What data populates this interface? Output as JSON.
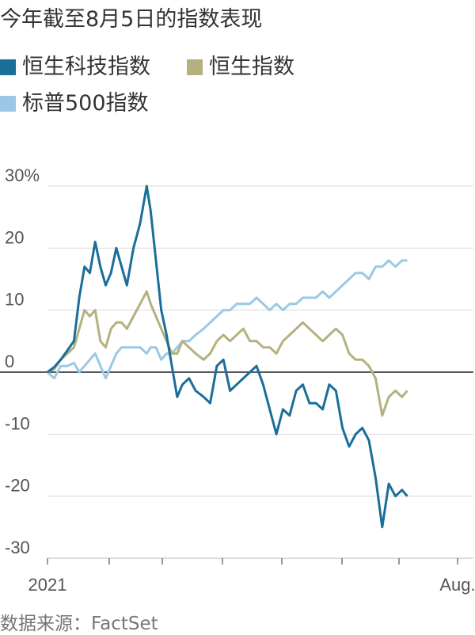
{
  "title": "今年截至8月5日的指数表现",
  "source": "数据来源：FactSet",
  "chart_data": {
    "type": "line",
    "title": "今年截至8月5日的指数表现",
    "ylim": [
      -30,
      30
    ],
    "yticks": [
      30,
      20,
      10,
      0,
      -10,
      -20,
      -30
    ],
    "ytick_labels": [
      "30%",
      "20",
      "10",
      "0",
      "-10",
      "-20",
      "-30"
    ],
    "xlim": [
      0,
      31
    ],
    "xtick_labels": [
      {
        "x": 0,
        "label": "2021"
      },
      {
        "x": 31,
        "label": "Aug."
      }
    ],
    "grid": true,
    "legend_position": "top-left",
    "series": [
      {
        "name": "恒生科技指数",
        "color": "#1a6e99",
        "values": [
          [
            0,
            0
          ],
          [
            0.5,
            0.8
          ],
          [
            1,
            2
          ],
          [
            1.5,
            3.5
          ],
          [
            2,
            5
          ],
          [
            2.4,
            12
          ],
          [
            2.8,
            17
          ],
          [
            3.2,
            16
          ],
          [
            3.6,
            21
          ],
          [
            4,
            17
          ],
          [
            4.4,
            14
          ],
          [
            4.8,
            16
          ],
          [
            5.2,
            20
          ],
          [
            5.6,
            17
          ],
          [
            6,
            14
          ],
          [
            6.5,
            20
          ],
          [
            7,
            24
          ],
          [
            7.5,
            30
          ],
          [
            7.8,
            26
          ],
          [
            8.2,
            18
          ],
          [
            8.6,
            10
          ],
          [
            9,
            6
          ],
          [
            9.4,
            1
          ],
          [
            9.8,
            -4
          ],
          [
            10.2,
            -2
          ],
          [
            10.7,
            -1
          ],
          [
            11.2,
            -3
          ],
          [
            11.8,
            -4
          ],
          [
            12.3,
            -5
          ],
          [
            12.8,
            1
          ],
          [
            13.3,
            2
          ],
          [
            13.8,
            -3
          ],
          [
            14.3,
            -2
          ],
          [
            14.8,
            -1
          ],
          [
            15.3,
            0
          ],
          [
            15.8,
            1
          ],
          [
            16.3,
            -2
          ],
          [
            16.8,
            -6
          ],
          [
            17.3,
            -10
          ],
          [
            17.8,
            -6
          ],
          [
            18.3,
            -7
          ],
          [
            18.8,
            -3
          ],
          [
            19.3,
            -2
          ],
          [
            19.8,
            -5
          ],
          [
            20.3,
            -5
          ],
          [
            20.8,
            -6
          ],
          [
            21.3,
            -2
          ],
          [
            21.8,
            -3
          ],
          [
            22.3,
            -9
          ],
          [
            22.8,
            -12
          ],
          [
            23.3,
            -10
          ],
          [
            23.8,
            -9
          ],
          [
            24.3,
            -11
          ],
          [
            24.8,
            -17
          ],
          [
            25.3,
            -25
          ],
          [
            25.8,
            -18
          ],
          [
            26.3,
            -20
          ],
          [
            26.8,
            -19
          ],
          [
            27.2,
            -20
          ]
        ]
      },
      {
        "name": "恒生指数",
        "color": "#b4b17e",
        "values": [
          [
            0,
            0
          ],
          [
            0.5,
            0.5
          ],
          [
            1,
            2
          ],
          [
            1.5,
            3
          ],
          [
            2,
            4
          ],
          [
            2.4,
            7
          ],
          [
            2.8,
            10
          ],
          [
            3.2,
            9
          ],
          [
            3.6,
            10
          ],
          [
            4,
            5
          ],
          [
            4.4,
            4
          ],
          [
            4.8,
            7
          ],
          [
            5.2,
            8
          ],
          [
            5.6,
            8
          ],
          [
            6,
            7
          ],
          [
            6.5,
            9
          ],
          [
            7,
            11
          ],
          [
            7.5,
            13
          ],
          [
            7.8,
            11
          ],
          [
            8.2,
            9
          ],
          [
            8.6,
            7
          ],
          [
            9,
            5
          ],
          [
            9.4,
            3
          ],
          [
            9.8,
            3
          ],
          [
            10.2,
            5
          ],
          [
            10.7,
            4
          ],
          [
            11.2,
            3
          ],
          [
            11.8,
            2
          ],
          [
            12.3,
            3
          ],
          [
            12.8,
            5
          ],
          [
            13.3,
            6
          ],
          [
            13.8,
            5
          ],
          [
            14.3,
            6
          ],
          [
            14.8,
            7
          ],
          [
            15.3,
            5
          ],
          [
            15.8,
            5
          ],
          [
            16.3,
            4
          ],
          [
            16.8,
            4
          ],
          [
            17.3,
            3
          ],
          [
            17.8,
            5
          ],
          [
            18.3,
            6
          ],
          [
            18.8,
            7
          ],
          [
            19.3,
            8
          ],
          [
            19.8,
            7
          ],
          [
            20.3,
            6
          ],
          [
            20.8,
            5
          ],
          [
            21.3,
            6
          ],
          [
            21.8,
            7
          ],
          [
            22.3,
            6
          ],
          [
            22.8,
            3
          ],
          [
            23.3,
            2
          ],
          [
            23.8,
            2
          ],
          [
            24.3,
            1
          ],
          [
            24.8,
            -1
          ],
          [
            25.3,
            -7
          ],
          [
            25.8,
            -4
          ],
          [
            26.3,
            -3
          ],
          [
            26.8,
            -4
          ],
          [
            27.2,
            -3
          ]
        ]
      },
      {
        "name": "标普500指数",
        "color": "#9ac8e6",
        "values": [
          [
            0,
            0
          ],
          [
            0.5,
            -1
          ],
          [
            1,
            1
          ],
          [
            1.5,
            1
          ],
          [
            2,
            1.5
          ],
          [
            2.4,
            0
          ],
          [
            2.8,
            1
          ],
          [
            3.2,
            2
          ],
          [
            3.6,
            3
          ],
          [
            4,
            1
          ],
          [
            4.4,
            -1
          ],
          [
            4.8,
            1
          ],
          [
            5.2,
            3
          ],
          [
            5.6,
            4
          ],
          [
            6,
            4
          ],
          [
            6.5,
            4
          ],
          [
            7,
            4
          ],
          [
            7.5,
            3
          ],
          [
            7.8,
            4
          ],
          [
            8.2,
            4
          ],
          [
            8.6,
            2
          ],
          [
            9,
            3
          ],
          [
            9.4,
            3
          ],
          [
            9.8,
            4
          ],
          [
            10.2,
            5
          ],
          [
            10.7,
            5
          ],
          [
            11.2,
            6
          ],
          [
            11.8,
            7
          ],
          [
            12.3,
            8
          ],
          [
            12.8,
            9
          ],
          [
            13.3,
            10
          ],
          [
            13.8,
            10
          ],
          [
            14.3,
            11
          ],
          [
            14.8,
            11
          ],
          [
            15.3,
            11
          ],
          [
            15.8,
            12
          ],
          [
            16.3,
            11
          ],
          [
            16.8,
            10
          ],
          [
            17.3,
            11
          ],
          [
            17.8,
            10
          ],
          [
            18.3,
            11
          ],
          [
            18.8,
            11
          ],
          [
            19.3,
            12
          ],
          [
            19.8,
            12
          ],
          [
            20.3,
            12
          ],
          [
            20.8,
            13
          ],
          [
            21.3,
            12
          ],
          [
            21.8,
            13
          ],
          [
            22.3,
            14
          ],
          [
            22.8,
            15
          ],
          [
            23.3,
            16
          ],
          [
            23.8,
            16
          ],
          [
            24.3,
            15
          ],
          [
            24.8,
            17
          ],
          [
            25.3,
            17
          ],
          [
            25.8,
            18
          ],
          [
            26.3,
            17
          ],
          [
            26.8,
            18
          ],
          [
            27.2,
            18
          ]
        ]
      }
    ]
  }
}
